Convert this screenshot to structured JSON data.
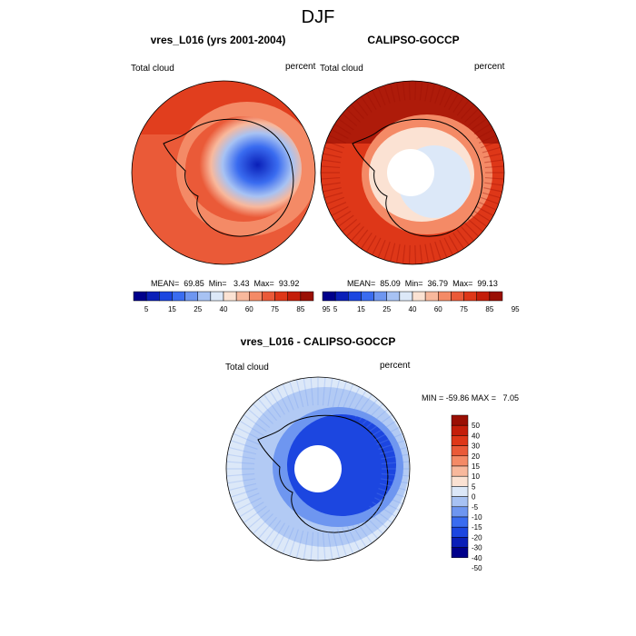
{
  "main_title": "DJF",
  "colors": {
    "abs": [
      "#00008b",
      "#0a1fb8",
      "#1c46e0",
      "#3a6cf0",
      "#6e96f0",
      "#a7c2f3",
      "#dce8f8",
      "#fbe2d3",
      "#f8b89c",
      "#f48a66",
      "#ea5a38",
      "#de3718",
      "#c41e0a",
      "#9a0f04"
    ],
    "diff": [
      "#00008b",
      "#0a1fb8",
      "#1c46e0",
      "#3a6cf0",
      "#6e96f0",
      "#a7c2f3",
      "#dce8f8",
      "#fbe2d3",
      "#f8b89c",
      "#f48a66",
      "#ea5a38",
      "#de3718",
      "#c41e0a",
      "#9a0f04"
    ],
    "coast": "#000000",
    "hole": "#ffffff"
  },
  "panels": [
    {
      "title": "vres_L016 (yrs 2001-2004)",
      "left_label": "Total cloud",
      "right_label": "percent",
      "stats": "MEAN=  69.85  Min=   3.43  Max=  93.92"
    },
    {
      "title": "CALIPSO-GOCCP",
      "left_label": "Total cloud",
      "right_label": "percent",
      "stats": "MEAN=  85.09  Min=  36.79  Max=  99.13"
    },
    {
      "title": "vres_L016 - CALIPSO-GOCCP",
      "left_label": "Total cloud",
      "right_label": "percent",
      "stats": "MIN = -59.86 MAX =   7.05"
    }
  ],
  "chart_data": [
    {
      "type": "heatmap",
      "title": "vres_L016 (yrs 2001-2004)",
      "projection": "south polar stereographic",
      "variable": "Total cloud",
      "units": "percent",
      "mean": 69.85,
      "min": 3.43,
      "max": 93.92,
      "colorbar_ticks": [
        "5",
        "15",
        "25",
        "40",
        "60",
        "75",
        "85",
        "95"
      ],
      "levels": [
        5,
        10,
        15,
        20,
        25,
        30,
        40,
        50,
        60,
        70,
        75,
        80,
        85,
        90,
        95
      ]
    },
    {
      "type": "heatmap",
      "title": "CALIPSO-GOCCP",
      "projection": "south polar stereographic",
      "variable": "Total cloud",
      "units": "percent",
      "mean": 85.09,
      "min": 36.79,
      "max": 99.13,
      "colorbar_ticks": [
        "5",
        "15",
        "25",
        "40",
        "60",
        "75",
        "85",
        "95"
      ],
      "levels": [
        5,
        10,
        15,
        20,
        25,
        30,
        40,
        50,
        60,
        70,
        75,
        80,
        85,
        90,
        95
      ]
    },
    {
      "type": "heatmap",
      "title": "vres_L016 - CALIPSO-GOCCP",
      "projection": "south polar stereographic",
      "variable": "Total cloud",
      "units": "percent",
      "min": -59.86,
      "max": 7.05,
      "colorbar_ticks": [
        "50",
        "40",
        "30",
        "20",
        "15",
        "10",
        "5",
        "0",
        "-5",
        "-10",
        "-15",
        "-20",
        "-30",
        "-40",
        "-50"
      ],
      "levels": [
        -50,
        -40,
        -30,
        -20,
        -15,
        -10,
        -5,
        0,
        5,
        10,
        15,
        20,
        30,
        40,
        50
      ]
    }
  ]
}
